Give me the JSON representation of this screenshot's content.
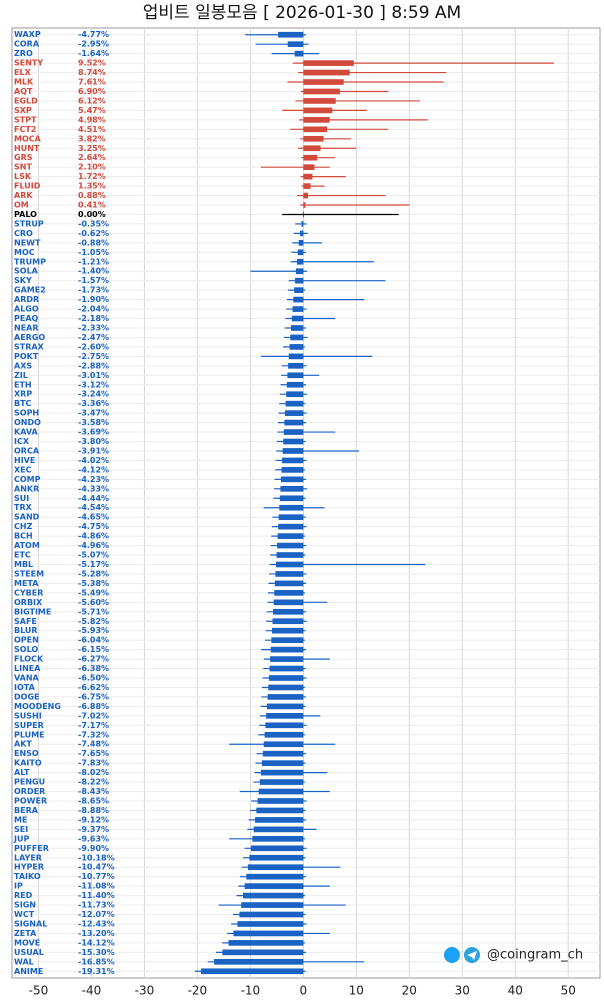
{
  "chart_data": {
    "type": "range-bar",
    "title": "업비트 일봉모음 [ 2026-01-30 ]  8:59 AM",
    "watermark": "@coingram_ch",
    "pos_color": "#d24a3c",
    "neg_color": "#1a63c4",
    "zero_color": "#000000",
    "grid": true,
    "xlim": [
      -55,
      56
    ],
    "xticks": [
      -50,
      -40,
      -30,
      -20,
      -10,
      0,
      10,
      20,
      30,
      40,
      50
    ],
    "categories": [
      "WAXP",
      "CORA",
      "ZRO",
      "SENTY",
      "ELX",
      "MLK",
      "AQT",
      "EGLD",
      "SXP",
      "STPT",
      "FCT2",
      "MOCA",
      "HUNT",
      "GRS",
      "SNT",
      "LSK",
      "FLUID",
      "ARK",
      "OM",
      "PALO",
      "STRUP",
      "CRO",
      "NEWT",
      "MOC",
      "TRUMP",
      "SOLA",
      "SKY",
      "GAME2",
      "ARDR",
      "ALGO",
      "PEAQ",
      "NEAR",
      "AERGO",
      "STRAX",
      "POKT",
      "AXS",
      "ZIL",
      "ETH",
      "XRP",
      "BTC",
      "SOPH",
      "ONDO",
      "KAVA",
      "ICX",
      "ORCA",
      "HIVE",
      "XEC",
      "COMP",
      "ANKR",
      "SUI",
      "TRX",
      "SAND",
      "CHZ",
      "BCH",
      "ATOM",
      "ETC",
      "MBL",
      "STEEM",
      "META",
      "CYBER",
      "ORBIX",
      "BIGTIME",
      "SAFE",
      "BLUR",
      "OPEN",
      "SOLO",
      "FLOCK",
      "LINEA",
      "VANA",
      "IOTA",
      "DOGE",
      "MOODENG",
      "SUSHI",
      "SUPER",
      "PLUME",
      "AKT",
      "ENSO",
      "KAITO",
      "ALT",
      "PENGU",
      "ORDER",
      "POWER",
      "BERA",
      "ME",
      "SEI",
      "JUP",
      "PUFFER",
      "LAYER",
      "HYPER",
      "TAIKO",
      "IP",
      "RED",
      "SIGN",
      "WCT",
      "SIGNAL",
      "ZETA",
      "MOVE",
      "USUAL",
      "WAL",
      "ANIME"
    ],
    "values": [
      -4.77,
      -2.95,
      -1.64,
      9.52,
      8.74,
      7.61,
      6.9,
      6.12,
      5.47,
      4.98,
      4.51,
      3.82,
      3.25,
      2.64,
      2.1,
      1.72,
      1.35,
      0.88,
      0.41,
      0,
      -0.35,
      -0.62,
      -0.88,
      -1.05,
      -1.21,
      -1.4,
      -1.57,
      -1.73,
      -1.9,
      -2.04,
      -2.18,
      -2.33,
      -2.47,
      -2.6,
      -2.75,
      -2.88,
      -3.01,
      -3.12,
      -3.24,
      -3.36,
      -3.47,
      -3.58,
      -3.69,
      -3.8,
      -3.91,
      -4.02,
      -4.12,
      -4.23,
      -4.33,
      -4.44,
      -4.54,
      -4.65,
      -4.75,
      -4.86,
      -4.96,
      -5.07,
      -5.17,
      -5.28,
      -5.38,
      -5.49,
      -5.6,
      -5.71,
      -5.82,
      -5.93,
      -6.04,
      -6.15,
      -6.27,
      -6.38,
      -6.5,
      -6.62,
      -6.75,
      -6.88,
      -7.02,
      -7.17,
      -7.32,
      -7.48,
      -7.65,
      -7.83,
      -8.02,
      -8.22,
      -8.43,
      -8.65,
      -8.88,
      -9.12,
      -9.37,
      -9.63,
      -9.9,
      -10.18,
      -10.47,
      -10.77,
      -11.08,
      -11.4,
      -11.73,
      -12.07,
      -12.43,
      -13.2,
      -14.12,
      -15.3,
      -16.85,
      -19.31
    ],
    "value_labels": [
      "-4.77%",
      "-2.95%",
      "-1.64%",
      "9.52%",
      "8.74%",
      "7.61%",
      "6.90%",
      "6.12%",
      "5.47%",
      "4.98%",
      "4.51%",
      "3.82%",
      "3.25%",
      "2.64%",
      "2.10%",
      "1.72%",
      "1.35%",
      "0.88%",
      "0.41%",
      "0.00%",
      "-0.35%",
      "-0.62%",
      "-0.88%",
      "-1.05%",
      "-1.21%",
      "-1.40%",
      "-1.57%",
      "-1.73%",
      "-1.90%",
      "-2.04%",
      "-2.18%",
      "-2.33%",
      "-2.47%",
      "-2.60%",
      "-2.75%",
      "-2.88%",
      "-3.01%",
      "-3.12%",
      "-3.24%",
      "-3.36%",
      "-3.47%",
      "-3.58%",
      "-3.69%",
      "-3.80%",
      "-3.91%",
      "-4.02%",
      "-4.12%",
      "-4.23%",
      "-4.33%",
      "-4.44%",
      "-4.54%",
      "-4.65%",
      "-4.75%",
      "-4.86%",
      "-4.96%",
      "-5.07%",
      "-5.17%",
      "-5.28%",
      "-5.38%",
      "-5.49%",
      "-5.60%",
      "-5.71%",
      "-5.82%",
      "-5.93%",
      "-6.04%",
      "-6.15%",
      "-6.27%",
      "-6.38%",
      "-6.50%",
      "-6.62%",
      "-6.75%",
      "-6.88%",
      "-7.02%",
      "-7.17%",
      "-7.32%",
      "-7.48%",
      "-7.65%",
      "-7.83%",
      "-8.02%",
      "-8.22%",
      "-8.43%",
      "-8.65%",
      "-8.88%",
      "-9.12%",
      "-9.37%",
      "-9.63%",
      "-9.90%",
      "-10.18%",
      "-10.47%",
      "-10.77%",
      "-11.08%",
      "-11.40%",
      "-11.73%",
      "-12.07%",
      "-12.43%",
      "-13.20%",
      "-14.12%",
      "-15.30%",
      "-16.85%",
      "-19.31%"
    ],
    "lows": [
      -11,
      -9,
      -6,
      -2,
      -1,
      -3,
      -0.5,
      -1.5,
      -4,
      -0.8,
      -2.5,
      -0.6,
      -1,
      -0.4,
      -8,
      -0.5,
      -0.3,
      -1.2,
      -0.6,
      -4,
      -1.55,
      -1.82,
      -2.08,
      -2.25,
      -2.41,
      -10,
      -2.77,
      -2.93,
      -3.1,
      -3.24,
      -3.38,
      -3.53,
      -3.67,
      -3.8,
      -8,
      -4.08,
      -4.21,
      -4.32,
      -4.44,
      -4.56,
      -4.67,
      -4.78,
      -4.89,
      -5,
      -5.11,
      -5.22,
      -5.32,
      -5.43,
      -5.53,
      -5.64,
      -7.5,
      -5.85,
      -5.95,
      -6.06,
      -6.16,
      -6.27,
      -6.37,
      -6.48,
      -6.58,
      -6.69,
      -6.8,
      -6.91,
      -7.02,
      -7.13,
      -7.24,
      -8,
      -7.47,
      -7.58,
      -7.7,
      -7.82,
      -7.95,
      -8.08,
      -8.22,
      -8.37,
      -8.52,
      -14,
      -8.85,
      -9.03,
      -9.22,
      -9.42,
      -12,
      -9.85,
      -10.08,
      -10.32,
      -10.57,
      -14,
      -11.1,
      -11.38,
      -11.67,
      -11.97,
      -12.28,
      -12.6,
      -16,
      -13.27,
      -13.63,
      -14.4,
      -15.32,
      -16.5,
      -18.05,
      -20.5
    ],
    "highs": [
      0.5,
      1,
      3,
      47.3,
      27,
      26.5,
      16,
      22,
      12,
      23.5,
      16,
      9,
      10,
      6,
      5,
      8,
      4,
      15.5,
      20,
      18,
      0.6,
      0.8,
      3.5,
      0.5,
      13.3,
      0.7,
      15.5,
      0.4,
      11.5,
      0.6,
      6,
      0.5,
      0.8,
      0.3,
      13,
      0.6,
      3,
      0.5,
      0.7,
      0.4,
      0.6,
      0.5,
      6,
      0.4,
      10.5,
      0.6,
      0.3,
      0.5,
      0.7,
      0.4,
      4,
      0.5,
      0.6,
      0.3,
      0.5,
      0.4,
      23,
      0.6,
      0.5,
      0.3,
      4.5,
      0.5,
      0.6,
      0.4,
      0.3,
      0.5,
      5,
      0.4,
      0.6,
      0.3,
      0.5,
      0.4,
      3.2,
      0.6,
      0.3,
      6,
      0.5,
      0.4,
      4.5,
      0.3,
      5,
      0.6,
      0.4,
      0.5,
      2.5,
      0.3,
      0.6,
      0.4,
      7,
      0.5,
      5,
      0.3,
      8,
      0.4,
      0.6,
      5,
      0.3,
      0.5,
      11.5,
      0.4
    ]
  }
}
